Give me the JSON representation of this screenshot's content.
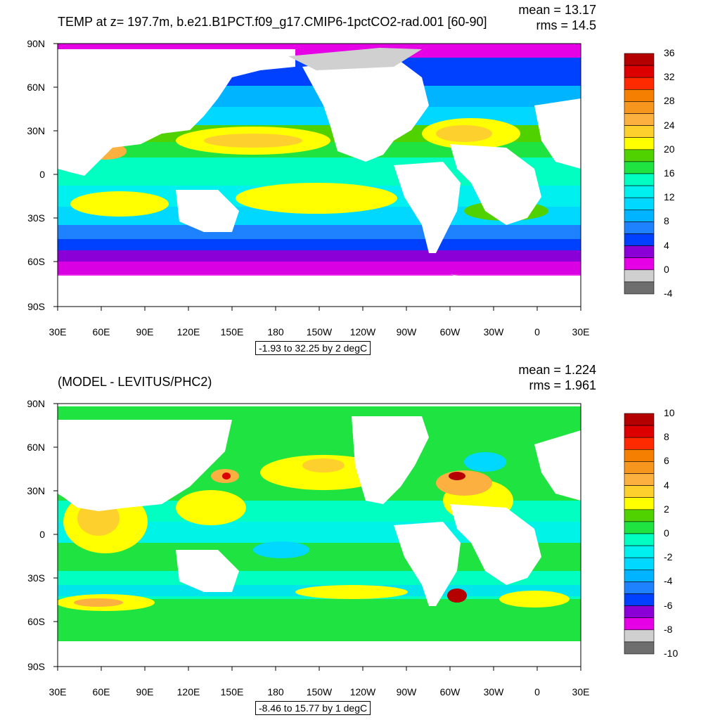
{
  "panels": [
    {
      "title": "TEMP at z= 197.7m, b.e21.B1PCT.f09_g17.CMIP6-1pctCO2-rad.001 [60-90]",
      "mean_text": "mean = 13.17",
      "rms_text": "rms = 14.5",
      "range_text": "-1.93 to 32.25 by 2 degC",
      "lat_labels": [
        "90N",
        "60N",
        "30N",
        "0",
        "30S",
        "60S",
        "90S"
      ],
      "lon_labels": [
        "30E",
        "60E",
        "90E",
        "120E",
        "150E",
        "180",
        "150W",
        "120W",
        "90W",
        "60W",
        "30W",
        "0",
        "30E"
      ],
      "colorbar": {
        "labels": [
          "36",
          "32",
          "28",
          "24",
          "20",
          "16",
          "12",
          "8",
          "4",
          "0",
          "-4"
        ],
        "colors": [
          "#b40000",
          "#dc0000",
          "#ff2a00",
          "#f57f00",
          "#f7961e",
          "#fbb040",
          "#fdd02d",
          "#ffff00",
          "#50d200",
          "#1fe340",
          "#00ffc0",
          "#00f0f0",
          "#00d8ff",
          "#00b4ff",
          "#1e82ff",
          "#0040ff",
          "#8a00d6",
          "#e600e6",
          "#d0d0d0",
          "#6e6e6e"
        ]
      }
    },
    {
      "title": "(MODEL - LEVITUS/PHC2)",
      "mean_text": "mean = 1.224",
      "rms_text": "rms = 1.961",
      "range_text": "-8.46 to 15.77 by 1 degC",
      "lat_labels": [
        "90N",
        "60N",
        "30N",
        "0",
        "30S",
        "60S",
        "90S"
      ],
      "lon_labels": [
        "30E",
        "60E",
        "90E",
        "120E",
        "150E",
        "180",
        "150W",
        "120W",
        "90W",
        "60W",
        "30W",
        "0",
        "30E"
      ],
      "colorbar": {
        "labels": [
          "10",
          "8",
          "6",
          "4",
          "2",
          "0",
          "-2",
          "-4",
          "-6",
          "-8",
          "-10"
        ],
        "colors": [
          "#b40000",
          "#dc0000",
          "#ff2a00",
          "#f57f00",
          "#f7961e",
          "#fbb040",
          "#fdd02d",
          "#ffff00",
          "#50d200",
          "#1fe340",
          "#00ffc0",
          "#00f0f0",
          "#00d8ff",
          "#00b4ff",
          "#1e82ff",
          "#0040ff",
          "#8a00d6",
          "#e600e6",
          "#d0d0d0",
          "#6e6e6e"
        ]
      }
    }
  ]
}
